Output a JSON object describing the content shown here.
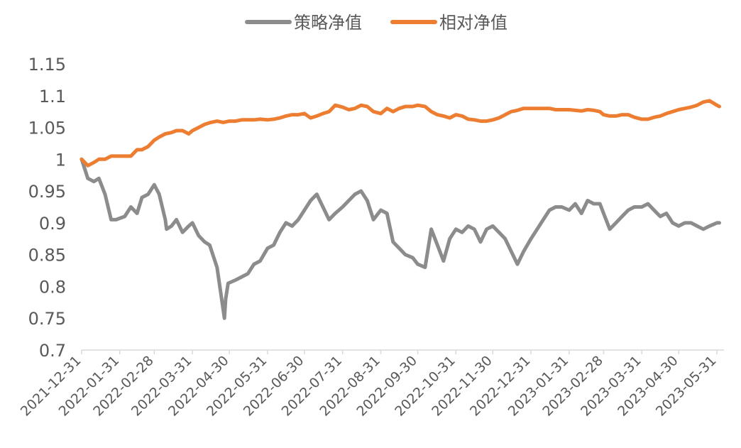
{
  "chart_data": {
    "type": "line",
    "title": "",
    "xlabel": "",
    "ylabel": "",
    "ylim": [
      0.7,
      1.15
    ],
    "yticks": [
      "0.7",
      "0.75",
      "0.8",
      "0.85",
      "0.9",
      "0.95",
      "1",
      "1.05",
      "1.1",
      "1.15"
    ],
    "xticks": [
      "2021-12-31",
      "2022-01-31",
      "2022-02-28",
      "2022-03-31",
      "2022-04-30",
      "2022-05-31",
      "2022-06-30",
      "2022-07-31",
      "2022-08-31",
      "2022-09-30",
      "2022-10-31",
      "2022-11-30",
      "2022-12-31",
      "2023-01-31",
      "2023-02-28",
      "2023-03-31",
      "2023-04-30",
      "2023-05-31"
    ],
    "grid": false,
    "legend": "top-center",
    "series": [
      {
        "name": "策略净值",
        "color": "#8c8c8c",
        "x": [
          "2021-12-31",
          "2022-01-05",
          "2022-01-10",
          "2022-01-14",
          "2022-01-19",
          "2022-01-24",
          "2022-01-28",
          "2022-02-04",
          "2022-02-09",
          "2022-02-14",
          "2022-02-18",
          "2022-02-23",
          "2022-02-28",
          "2022-03-04",
          "2022-03-09",
          "2022-03-10",
          "2022-03-14",
          "2022-03-18",
          "2022-03-23",
          "2022-03-28",
          "2022-03-31",
          "2022-04-05",
          "2022-04-10",
          "2022-04-14",
          "2022-04-20",
          "2022-04-26",
          "2022-04-27",
          "2022-04-29",
          "2022-05-05",
          "2022-05-10",
          "2022-05-15",
          "2022-05-20",
          "2022-05-25",
          "2022-05-31",
          "2022-06-05",
          "2022-06-10",
          "2022-06-15",
          "2022-06-20",
          "2022-06-25",
          "2022-06-30",
          "2022-07-05",
          "2022-07-10",
          "2022-07-15",
          "2022-07-20",
          "2022-07-25",
          "2022-07-31",
          "2022-08-05",
          "2022-08-10",
          "2022-08-15",
          "2022-08-20",
          "2022-08-25",
          "2022-08-31",
          "2022-09-05",
          "2022-09-10",
          "2022-09-15",
          "2022-09-20",
          "2022-09-26",
          "2022-09-30",
          "2022-10-06",
          "2022-10-11",
          "2022-10-16",
          "2022-10-21",
          "2022-10-26",
          "2022-10-31",
          "2022-11-05",
          "2022-11-10",
          "2022-11-15",
          "2022-11-20",
          "2022-11-25",
          "2022-11-30",
          "2022-12-05",
          "2022-12-10",
          "2022-12-15",
          "2022-12-20",
          "2022-12-25",
          "2022-12-31",
          "2023-01-05",
          "2023-01-10",
          "2023-01-15",
          "2023-01-20",
          "2023-01-25",
          "2023-01-31",
          "2023-02-05",
          "2023-02-10",
          "2023-02-15",
          "2023-02-20",
          "2023-02-25",
          "2023-02-28",
          "2023-03-05",
          "2023-03-10",
          "2023-03-15",
          "2023-03-20",
          "2023-03-25",
          "2023-03-31",
          "2023-04-05",
          "2023-04-10",
          "2023-04-15",
          "2023-04-20",
          "2023-04-25",
          "2023-04-30",
          "2023-05-05",
          "2023-05-10",
          "2023-05-15",
          "2023-05-20",
          "2023-05-25",
          "2023-05-31",
          "2023-06-02"
        ],
        "values": [
          1.0,
          0.97,
          0.965,
          0.97,
          0.945,
          0.905,
          0.905,
          0.91,
          0.925,
          0.915,
          0.94,
          0.945,
          0.96,
          0.945,
          0.905,
          0.89,
          0.895,
          0.905,
          0.885,
          0.895,
          0.9,
          0.88,
          0.87,
          0.865,
          0.83,
          0.75,
          0.78,
          0.805,
          0.81,
          0.815,
          0.82,
          0.835,
          0.84,
          0.86,
          0.865,
          0.885,
          0.9,
          0.895,
          0.905,
          0.92,
          0.935,
          0.945,
          0.925,
          0.905,
          0.915,
          0.925,
          0.935,
          0.945,
          0.95,
          0.935,
          0.905,
          0.92,
          0.915,
          0.87,
          0.86,
          0.85,
          0.845,
          0.835,
          0.83,
          0.89,
          0.865,
          0.84,
          0.875,
          0.89,
          0.885,
          0.895,
          0.89,
          0.87,
          0.89,
          0.895,
          0.885,
          0.875,
          0.855,
          0.835,
          0.855,
          0.875,
          0.89,
          0.905,
          0.92,
          0.925,
          0.925,
          0.92,
          0.93,
          0.915,
          0.935,
          0.93,
          0.93,
          0.915,
          0.89,
          0.9,
          0.91,
          0.92,
          0.925,
          0.925,
          0.93,
          0.92,
          0.91,
          0.915,
          0.9,
          0.895,
          0.9,
          0.9,
          0.895,
          0.89,
          0.895,
          0.9,
          0.9
        ]
      },
      {
        "name": "相对净值",
        "color": "#ed7d31",
        "x": [
          "2021-12-31",
          "2022-01-05",
          "2022-01-10",
          "2022-01-14",
          "2022-01-19",
          "2022-01-24",
          "2022-01-28",
          "2022-02-04",
          "2022-02-09",
          "2022-02-14",
          "2022-02-18",
          "2022-02-23",
          "2022-02-28",
          "2022-03-04",
          "2022-03-09",
          "2022-03-14",
          "2022-03-18",
          "2022-03-23",
          "2022-03-28",
          "2022-03-31",
          "2022-04-05",
          "2022-04-10",
          "2022-04-15",
          "2022-04-20",
          "2022-04-25",
          "2022-04-30",
          "2022-05-05",
          "2022-05-10",
          "2022-05-15",
          "2022-05-20",
          "2022-05-25",
          "2022-05-31",
          "2022-06-05",
          "2022-06-10",
          "2022-06-15",
          "2022-06-20",
          "2022-06-25",
          "2022-06-30",
          "2022-07-05",
          "2022-07-10",
          "2022-07-15",
          "2022-07-20",
          "2022-07-25",
          "2022-07-31",
          "2022-08-05",
          "2022-08-10",
          "2022-08-15",
          "2022-08-20",
          "2022-08-25",
          "2022-08-31",
          "2022-09-05",
          "2022-09-10",
          "2022-09-15",
          "2022-09-20",
          "2022-09-26",
          "2022-09-30",
          "2022-10-06",
          "2022-10-11",
          "2022-10-16",
          "2022-10-21",
          "2022-10-26",
          "2022-10-31",
          "2022-11-05",
          "2022-11-10",
          "2022-11-15",
          "2022-11-20",
          "2022-11-25",
          "2022-11-30",
          "2022-12-05",
          "2022-12-10",
          "2022-12-15",
          "2022-12-20",
          "2022-12-25",
          "2022-12-31",
          "2023-01-05",
          "2023-01-10",
          "2023-01-15",
          "2023-01-20",
          "2023-01-25",
          "2023-01-31",
          "2023-02-05",
          "2023-02-10",
          "2023-02-15",
          "2023-02-20",
          "2023-02-25",
          "2023-02-28",
          "2023-03-05",
          "2023-03-10",
          "2023-03-15",
          "2023-03-20",
          "2023-03-25",
          "2023-03-31",
          "2023-04-05",
          "2023-04-10",
          "2023-04-15",
          "2023-04-20",
          "2023-04-25",
          "2023-04-30",
          "2023-05-05",
          "2023-05-10",
          "2023-05-15",
          "2023-05-20",
          "2023-05-25",
          "2023-05-31",
          "2023-06-02"
        ],
        "values": [
          1.0,
          0.99,
          0.995,
          1.0,
          1.0,
          1.005,
          1.005,
          1.005,
          1.005,
          1.015,
          1.015,
          1.02,
          1.03,
          1.035,
          1.04,
          1.042,
          1.045,
          1.045,
          1.04,
          1.045,
          1.05,
          1.055,
          1.058,
          1.06,
          1.058,
          1.06,
          1.06,
          1.062,
          1.062,
          1.062,
          1.063,
          1.062,
          1.063,
          1.065,
          1.068,
          1.07,
          1.07,
          1.072,
          1.065,
          1.068,
          1.072,
          1.075,
          1.085,
          1.082,
          1.078,
          1.08,
          1.085,
          1.083,
          1.075,
          1.072,
          1.08,
          1.075,
          1.08,
          1.083,
          1.083,
          1.085,
          1.083,
          1.075,
          1.07,
          1.068,
          1.065,
          1.07,
          1.068,
          1.063,
          1.062,
          1.06,
          1.06,
          1.062,
          1.065,
          1.07,
          1.075,
          1.077,
          1.08,
          1.08,
          1.08,
          1.08,
          1.08,
          1.078,
          1.078,
          1.078,
          1.077,
          1.076,
          1.078,
          1.077,
          1.075,
          1.07,
          1.068,
          1.068,
          1.07,
          1.07,
          1.066,
          1.063,
          1.063,
          1.066,
          1.068,
          1.072,
          1.075,
          1.078,
          1.08,
          1.082,
          1.085,
          1.09,
          1.092,
          1.085,
          1.083
        ]
      }
    ]
  }
}
